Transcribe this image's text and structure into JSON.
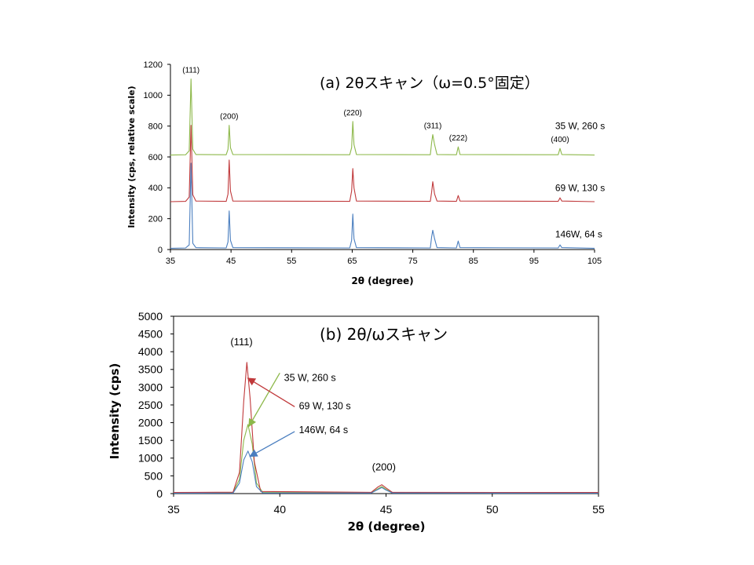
{
  "colors": {
    "green": "#8db84a",
    "red": "#c0393b",
    "blue": "#4a7ebf",
    "axis": "#000000"
  },
  "chart_data": [
    {
      "type": "line",
      "title": "(a) 2θスキャン（ω=0.5°固定）",
      "xlabel": "2θ (degree)",
      "ylabel": "Intensity (cps, relative scale)",
      "xlim": [
        35,
        105
      ],
      "ylim": [
        0,
        1200
      ],
      "xticks": [
        35,
        45,
        55,
        65,
        75,
        85,
        95,
        105
      ],
      "yticks": [
        0,
        200,
        400,
        600,
        800,
        1000,
        1200
      ],
      "grid": false,
      "peaks": [
        {
          "label": "(111)",
          "x": 38.4
        },
        {
          "label": "(200)",
          "x": 44.7
        },
        {
          "label": "(220)",
          "x": 65.1
        },
        {
          "label": "(311)",
          "x": 78.3
        },
        {
          "label": "(222)",
          "x": 82.5
        },
        {
          "label": "(400)",
          "x": 99.3
        }
      ],
      "series": [
        {
          "name": "35 W, 260 s",
          "color": "#8db84a",
          "baseline": 612,
          "points": [
            [
              35,
              612
            ],
            [
              37.5,
              614
            ],
            [
              38.1,
              640
            ],
            [
              38.4,
              1105
            ],
            [
              38.7,
              650
            ],
            [
              39.2,
              616
            ],
            [
              44.2,
              614
            ],
            [
              44.5,
              650
            ],
            [
              44.7,
              805
            ],
            [
              44.9,
              660
            ],
            [
              45.3,
              616
            ],
            [
              64.6,
              614
            ],
            [
              64.9,
              660
            ],
            [
              65.1,
              830
            ],
            [
              65.3,
              680
            ],
            [
              65.7,
              616
            ],
            [
              77.9,
              614
            ],
            [
              78.1,
              690
            ],
            [
              78.3,
              745
            ],
            [
              78.6,
              680
            ],
            [
              79,
              616
            ],
            [
              82.2,
              614
            ],
            [
              82.5,
              665
            ],
            [
              82.8,
              616
            ],
            [
              99,
              614
            ],
            [
              99.3,
              655
            ],
            [
              99.6,
              616
            ],
            [
              105,
              612
            ]
          ]
        },
        {
          "name": "69 W, 130 s",
          "color": "#c0393b",
          "baseline": 310,
          "points": [
            [
              35,
              310
            ],
            [
              37.5,
              312
            ],
            [
              38.1,
              340
            ],
            [
              38.4,
              805
            ],
            [
              38.7,
              355
            ],
            [
              39.2,
              314
            ],
            [
              44.2,
              312
            ],
            [
              44.5,
              360
            ],
            [
              44.7,
              580
            ],
            [
              44.9,
              380
            ],
            [
              45.3,
              314
            ],
            [
              64.6,
              312
            ],
            [
              64.9,
              380
            ],
            [
              65.1,
              525
            ],
            [
              65.3,
              400
            ],
            [
              65.7,
              314
            ],
            [
              77.9,
              312
            ],
            [
              78.1,
              370
            ],
            [
              78.3,
              440
            ],
            [
              78.6,
              360
            ],
            [
              79,
              314
            ],
            [
              82.2,
              312
            ],
            [
              82.5,
              350
            ],
            [
              82.8,
              314
            ],
            [
              99,
              312
            ],
            [
              99.3,
              335
            ],
            [
              99.6,
              314
            ],
            [
              105,
              310
            ]
          ]
        },
        {
          "name": "146W, 64 s",
          "color": "#4a7ebf",
          "baseline": 8,
          "points": [
            [
              35,
              8
            ],
            [
              37.5,
              10
            ],
            [
              38.1,
              30
            ],
            [
              38.4,
              560
            ],
            [
              38.7,
              40
            ],
            [
              39.2,
              12
            ],
            [
              44.2,
              10
            ],
            [
              44.5,
              50
            ],
            [
              44.7,
              250
            ],
            [
              44.9,
              60
            ],
            [
              45.3,
              12
            ],
            [
              64.6,
              10
            ],
            [
              64.9,
              60
            ],
            [
              65.1,
              230
            ],
            [
              65.3,
              70
            ],
            [
              65.7,
              12
            ],
            [
              77.9,
              10
            ],
            [
              78.1,
              80
            ],
            [
              78.3,
              125
            ],
            [
              78.6,
              70
            ],
            [
              79,
              12
            ],
            [
              82.2,
              10
            ],
            [
              82.5,
              55
            ],
            [
              82.8,
              12
            ],
            [
              99,
              10
            ],
            [
              99.3,
              30
            ],
            [
              99.6,
              12
            ],
            [
              105,
              8
            ]
          ]
        }
      ],
      "series_labels": [
        {
          "text": "35 W, 260 s",
          "x": 98.5,
          "y": 780
        },
        {
          "text": "69 W, 130 s",
          "x": 98.5,
          "y": 380
        },
        {
          "text": "146W, 64 s",
          "x": 98.5,
          "y": 80
        }
      ]
    },
    {
      "type": "line",
      "title": "(b) 2θ/ωスキャン",
      "xlabel": "2θ (degree)",
      "ylabel": "Intensity (cps)",
      "xlim": [
        35,
        55
      ],
      "ylim": [
        0,
        5000
      ],
      "xticks": [
        35,
        40,
        45,
        50,
        55
      ],
      "yticks": [
        0,
        500,
        1000,
        1500,
        2000,
        2500,
        3000,
        3500,
        4000,
        4500,
        5000
      ],
      "grid": false,
      "peaks": [
        {
          "label": "(111)",
          "x": 38.2,
          "y": 4180
        },
        {
          "label": "(200)",
          "x": 44.9,
          "y": 650
        }
      ],
      "series": [
        {
          "name": "35 W, 260 s",
          "color": "#8db84a",
          "points": [
            [
              35,
              20
            ],
            [
              37.8,
              30
            ],
            [
              38.1,
              400
            ],
            [
              38.3,
              1500
            ],
            [
              38.5,
              1950
            ],
            [
              38.7,
              1400
            ],
            [
              38.9,
              300
            ],
            [
              39.2,
              30
            ],
            [
              44.3,
              25
            ],
            [
              44.6,
              130
            ],
            [
              44.8,
              200
            ],
            [
              45,
              120
            ],
            [
              45.3,
              25
            ],
            [
              55,
              20
            ]
          ]
        },
        {
          "name": "69 W, 130 s",
          "color": "#c0393b",
          "points": [
            [
              35,
              30
            ],
            [
              37.8,
              40
            ],
            [
              38.1,
              600
            ],
            [
              38.3,
              2600
            ],
            [
              38.45,
              3700
            ],
            [
              38.6,
              2700
            ],
            [
              38.8,
              900
            ],
            [
              39.1,
              60
            ],
            [
              44.3,
              35
            ],
            [
              44.6,
              180
            ],
            [
              44.8,
              250
            ],
            [
              45,
              160
            ],
            [
              45.3,
              35
            ],
            [
              55,
              30
            ]
          ]
        },
        {
          "name": "146W, 64 s",
          "color": "#4a7ebf",
          "points": [
            [
              35,
              10
            ],
            [
              37.8,
              15
            ],
            [
              38.1,
              300
            ],
            [
              38.3,
              950
            ],
            [
              38.5,
              1200
            ],
            [
              38.7,
              900
            ],
            [
              38.9,
              200
            ],
            [
              39.2,
              15
            ],
            [
              44.3,
              15
            ],
            [
              44.6,
              110
            ],
            [
              44.8,
              170
            ],
            [
              45,
              100
            ],
            [
              45.3,
              15
            ],
            [
              55,
              10
            ]
          ]
        }
      ],
      "annotations": [
        {
          "text": "35 W, 260 s",
          "color": "#8db84a",
          "text_x": 40.2,
          "text_y": 3180,
          "arrow_from": [
            40.0,
            3400
          ],
          "arrow_to": [
            38.55,
            1900
          ]
        },
        {
          "text": "69 W, 130 s",
          "color": "#c0393b",
          "text_x": 40.9,
          "text_y": 2380,
          "arrow_from": [
            40.7,
            2450
          ],
          "arrow_to": [
            38.5,
            3250
          ]
        },
        {
          "text": "146W, 64 s",
          "color": "#4a7ebf",
          "text_x": 40.9,
          "text_y": 1700,
          "arrow_from": [
            40.7,
            1750
          ],
          "arrow_to": [
            38.6,
            1050
          ]
        }
      ]
    }
  ]
}
